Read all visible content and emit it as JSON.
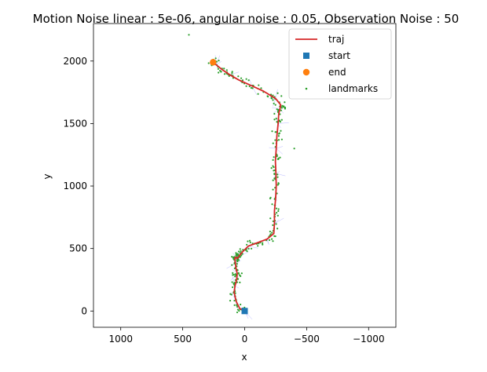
{
  "chart_data": {
    "type": "scatter",
    "title": "Motion Noise linear : 5e-06, angular noise : 0.05, Observation Noise : 50",
    "xlabel": "x",
    "ylabel": "y",
    "x_inverted": true,
    "xlim": [
      1220,
      -1220
    ],
    "ylim": [
      -130,
      2300
    ],
    "xticks": [
      1000,
      500,
      0,
      -500,
      -1000
    ],
    "xtick_labels": [
      "1000",
      "500",
      "0",
      "−500",
      "−1000"
    ],
    "yticks": [
      0,
      500,
      1000,
      1500,
      2000
    ],
    "ytick_labels": [
      "0",
      "500",
      "1000",
      "1500",
      "2000"
    ],
    "grid": false,
    "legend_position": "top-right",
    "legend": [
      {
        "label": "traj",
        "marker": "line",
        "color": "#d62728"
      },
      {
        "label": "start",
        "marker": "square",
        "color": "#1f77b4"
      },
      {
        "label": "end",
        "marker": "circle",
        "color": "#ff7f0e"
      },
      {
        "label": "landmarks",
        "marker": "dot",
        "color": "#2ca02c"
      }
    ],
    "traj": {
      "color": "#d62728",
      "x": [
        0,
        40,
        70,
        85,
        78,
        65,
        60,
        70,
        75,
        80,
        72,
        60,
        45,
        20,
        -30,
        -100,
        -180,
        -235,
        -240,
        -240,
        -250,
        -255,
        -252,
        -248,
        -255,
        -260,
        -270,
        -275,
        -285,
        -290,
        -250,
        -150,
        -60,
        50,
        120,
        180,
        230,
        270
      ],
      "y": [
        0,
        20,
        80,
        150,
        200,
        250,
        300,
        340,
        380,
        420,
        430,
        420,
        440,
        470,
        520,
        545,
        575,
        620,
        700,
        800,
        900,
        1000,
        1100,
        1200,
        1300,
        1400,
        1500,
        1580,
        1620,
        1650,
        1700,
        1760,
        1800,
        1850,
        1890,
        1930,
        1970,
        2000
      ]
    },
    "start": {
      "x": 0,
      "y": 0,
      "color": "#1f77b4"
    },
    "end": {
      "x": 255,
      "y": 1990,
      "color": "#ff7f0e"
    },
    "landmarks_color": "#2ca02c",
    "observation_color": "#0000ff"
  }
}
